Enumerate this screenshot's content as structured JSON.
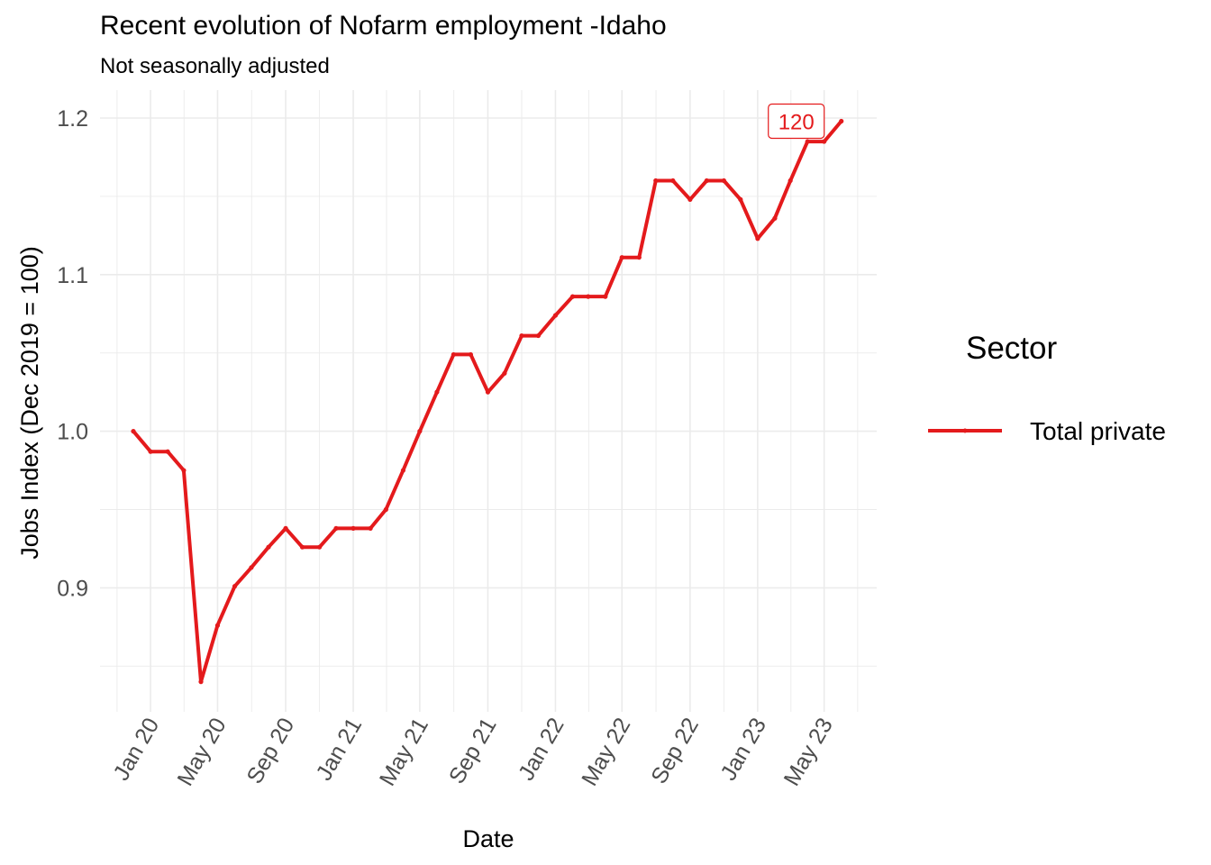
{
  "title": "Recent evolution of Nofarm employment -Idaho",
  "subtitle": "Not seasonally adjusted",
  "colors": {
    "series": "#e41a1c",
    "grid": "#ebebeb",
    "tick_text": "#4d4d4d"
  },
  "chart_data": {
    "type": "line",
    "xlabel": "Date",
    "ylabel": "Jobs Index (Dec 2019 = 100)",
    "ylim": [
      0.82,
      1.22
    ],
    "y_ticks": [
      0.9,
      1.0,
      1.1,
      1.2
    ],
    "y_tick_labels": [
      "0.9",
      "1.0",
      "1.1",
      "1.2"
    ],
    "x_ticks": [
      "2020-01",
      "2020-05",
      "2020-09",
      "2021-01",
      "2021-05",
      "2021-09",
      "2022-01",
      "2022-05",
      "2022-09",
      "2023-01",
      "2023-05"
    ],
    "x_tick_labels": [
      "Jan 20",
      "May 20",
      "Sep 20",
      "Jan 21",
      "May 21",
      "Sep 21",
      "Jan 22",
      "May 22",
      "Sep 22",
      "Jan 23",
      "May 23"
    ],
    "legend_title": "Sector",
    "legend_position": "right",
    "grid": true,
    "end_label": "120",
    "series": [
      {
        "name": "Total private",
        "x": [
          "2019-12",
          "2020-01",
          "2020-02",
          "2020-03",
          "2020-04",
          "2020-05",
          "2020-06",
          "2020-07",
          "2020-08",
          "2020-09",
          "2020-10",
          "2020-11",
          "2020-12",
          "2021-01",
          "2021-02",
          "2021-03",
          "2021-04",
          "2021-05",
          "2021-06",
          "2021-07",
          "2021-08",
          "2021-09",
          "2021-10",
          "2021-11",
          "2021-12",
          "2022-01",
          "2022-02",
          "2022-03",
          "2022-04",
          "2022-05",
          "2022-06",
          "2022-07",
          "2022-08",
          "2022-09",
          "2022-10",
          "2022-11",
          "2022-12",
          "2023-01",
          "2023-02",
          "2023-03",
          "2023-04",
          "2023-05",
          "2023-06"
        ],
        "values": [
          1.0,
          0.987,
          0.987,
          0.975,
          0.84,
          0.876,
          0.901,
          0.913,
          0.926,
          0.938,
          0.926,
          0.926,
          0.938,
          0.938,
          0.938,
          0.95,
          0.975,
          1.0,
          1.025,
          1.049,
          1.049,
          1.025,
          1.037,
          1.061,
          1.061,
          1.074,
          1.086,
          1.086,
          1.086,
          1.111,
          1.111,
          1.16,
          1.16,
          1.148,
          1.16,
          1.16,
          1.148,
          1.123,
          1.136,
          1.16,
          1.185,
          1.185,
          1.198
        ]
      }
    ]
  }
}
